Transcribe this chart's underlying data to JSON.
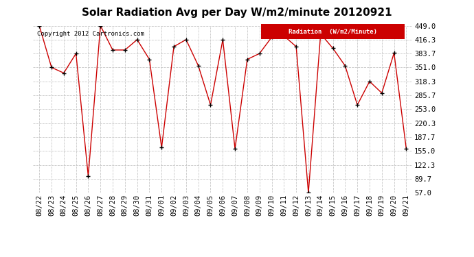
{
  "title": "Solar Radiation Avg per Day W/m2/minute 20120921",
  "copyright_text": "Copyright 2012 Cartronics.com",
  "legend_label": "Radiation  (W/m2/Minute)",
  "dates": [
    "08/22",
    "08/23",
    "08/24",
    "08/25",
    "08/26",
    "08/27",
    "08/28",
    "08/29",
    "08/30",
    "08/31",
    "09/01",
    "09/02",
    "09/03",
    "09/04",
    "09/05",
    "09/06",
    "09/07",
    "09/08",
    "09/09",
    "09/10",
    "09/11",
    "09/12",
    "09/13",
    "09/14",
    "09/15",
    "09/16",
    "09/17",
    "09/18",
    "09/19",
    "09/20",
    "09/21"
  ],
  "values": [
    449.0,
    351.0,
    338.0,
    383.7,
    96.0,
    449.0,
    392.0,
    392.0,
    416.3,
    370.0,
    163.0,
    400.0,
    416.3,
    355.0,
    263.0,
    416.3,
    160.0,
    370.0,
    383.7,
    422.0,
    425.0,
    400.0,
    57.0,
    430.0,
    396.0,
    355.0,
    263.0,
    318.3,
    291.0,
    385.0,
    160.0
  ],
  "y_ticks": [
    57.0,
    89.7,
    122.3,
    155.0,
    187.7,
    220.3,
    253.0,
    285.7,
    318.3,
    351.0,
    383.7,
    416.3,
    449.0
  ],
  "ylim": [
    57.0,
    449.0
  ],
  "line_color": "#cc0000",
  "marker_color": "#000000",
  "grid_color": "#c8c8c8",
  "background_color": "#ffffff",
  "legend_bg": "#cc0000",
  "legend_text_color": "#ffffff",
  "title_fontsize": 11,
  "tick_fontsize": 7.5,
  "copyright_fontsize": 6.5
}
